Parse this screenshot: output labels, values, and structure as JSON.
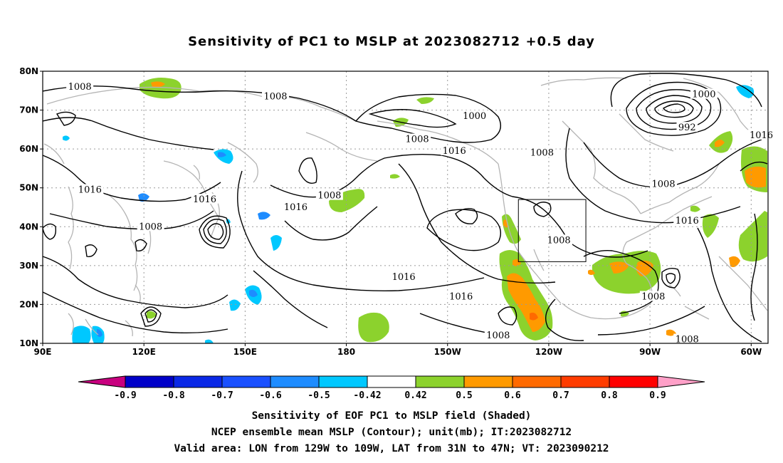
{
  "title": "Sensitivity of PC1 to MSLP at 2023082712 +0.5 day",
  "map": {
    "lon_range": [
      90,
      305
    ],
    "lat_range": [
      10,
      80
    ],
    "lat_ticks": [
      {
        "value": 10,
        "label": "10N"
      },
      {
        "value": 20,
        "label": "20N"
      },
      {
        "value": 30,
        "label": "30N"
      },
      {
        "value": 40,
        "label": "40N"
      },
      {
        "value": 50,
        "label": "50N"
      },
      {
        "value": 60,
        "label": "60N"
      },
      {
        "value": 70,
        "label": "70N"
      },
      {
        "value": 80,
        "label": "80N"
      }
    ],
    "lon_ticks": [
      {
        "value": 90,
        "label": "90E"
      },
      {
        "value": 120,
        "label": "120E"
      },
      {
        "value": 150,
        "label": "150E"
      },
      {
        "value": 180,
        "label": "180"
      },
      {
        "value": 210,
        "label": "150W"
      },
      {
        "value": 240,
        "label": "120W"
      },
      {
        "value": 270,
        "label": "90W"
      },
      {
        "value": 300,
        "label": "60W"
      }
    ],
    "valid_box": {
      "lon": [
        231,
        251
      ],
      "lat": [
        31,
        47
      ]
    },
    "contour_labels": [
      {
        "text": "1008",
        "lon": 101,
        "lat": 76
      },
      {
        "text": "1008",
        "lon": 159,
        "lat": 73.5
      },
      {
        "text": "1000",
        "lon": 218,
        "lat": 68.5
      },
      {
        "text": "1008",
        "lon": 201,
        "lat": 62.5
      },
      {
        "text": "1016",
        "lon": 212,
        "lat": 59.5
      },
      {
        "text": "1008",
        "lon": 238,
        "lat": 59
      },
      {
        "text": "1000",
        "lon": 286,
        "lat": 74
      },
      {
        "text": "992",
        "lon": 281,
        "lat": 65.5
      },
      {
        "text": "1016",
        "lon": 303,
        "lat": 63.5
      },
      {
        "text": "1008",
        "lon": 274,
        "lat": 51
      },
      {
        "text": "1016",
        "lon": 104,
        "lat": 49.5
      },
      {
        "text": "1016",
        "lon": 138,
        "lat": 47
      },
      {
        "text": "1008",
        "lon": 175,
        "lat": 48
      },
      {
        "text": "1016",
        "lon": 165,
        "lat": 45
      },
      {
        "text": "1008",
        "lon": 122,
        "lat": 40
      },
      {
        "text": "1016",
        "lon": 281,
        "lat": 41.5
      },
      {
        "text": "1008",
        "lon": 243,
        "lat": 36.5
      },
      {
        "text": "1016",
        "lon": 197,
        "lat": 27
      },
      {
        "text": "1016",
        "lon": 214,
        "lat": 22
      },
      {
        "text": "1008",
        "lon": 271,
        "lat": 22
      },
      {
        "text": "1008",
        "lon": 225,
        "lat": 12
      },
      {
        "text": "1008",
        "lon": 281,
        "lat": 11
      }
    ],
    "colors": {
      "contour": "#000000",
      "coast": "#b4b4b4",
      "grid": "#9a9a9a",
      "box": "#000000"
    }
  },
  "colorbar": {
    "levels": [
      "-0.9",
      "-0.8",
      "-0.7",
      "-0.6",
      "-0.5",
      "-0.42",
      "0.42",
      "0.5",
      "0.6",
      "0.7",
      "0.8",
      "0.9"
    ],
    "colors": [
      "#c8007f",
      "#0000c8",
      "#0a28e6",
      "#1a50ff",
      "#1e8cff",
      "#00c8ff",
      "#ffffff",
      "#8cd22d",
      "#ff9a00",
      "#ff6a00",
      "#ff3c00",
      "#ff0000",
      "#ffa0c8"
    ]
  },
  "captions": [
    "Sensitivity of EOF PC1 to MSLP field (Shaded)",
    "NCEP ensemble mean MSLP (Contour); unit(mb); IT:2023082712",
    "Valid area: LON from 129W to 109W, LAT from 31N to 47N; VT: 2023090212"
  ]
}
